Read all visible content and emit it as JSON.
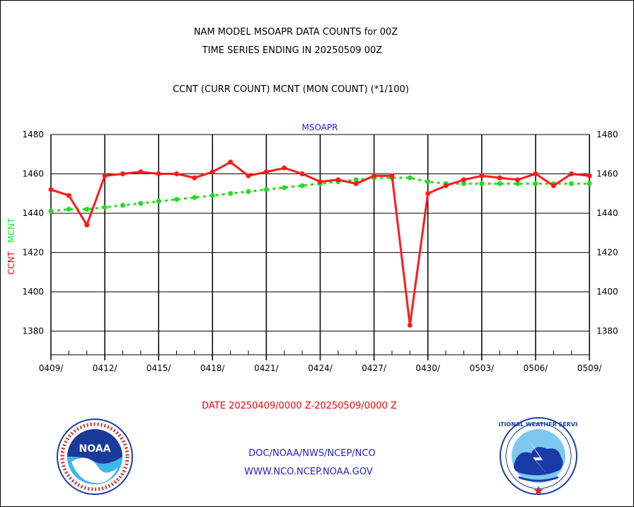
{
  "header": {
    "line1": "NAM MODEL MSOAPR DATA COUNTS for 00Z",
    "line2": "TIME SERIES ENDING IN 20250509 00Z",
    "line3": "CCNT (CURR COUNT) MCNT (MON COUNT) (*1/100)"
  },
  "footer": {
    "date_range": "DATE 20250409/0000 Z-20250509/0000 Z",
    "org": "DOC/NOAA/NWS/NCEP/NCO",
    "url": "WWW.NCO.NCEP.NOAA.GOV"
  },
  "logos": {
    "left": {
      "text": "NOAA"
    },
    "right": {
      "text": "NATIONAL WEATHER SERVICE"
    }
  },
  "colors": {
    "ccnt": "#ff1a1a",
    "mcnt": "#22dd22",
    "text_blue": "#1f1fd0"
  },
  "chart_data": {
    "type": "line",
    "title": "MSOAPR",
    "ylabel_ccnt": "CCNT",
    "ylabel_mcnt": "MCNT",
    "ylim": [
      1368,
      1480
    ],
    "yticks": [
      "1380",
      "1400",
      "1420",
      "1440",
      "1460",
      "1480"
    ],
    "xlim": [
      0,
      30
    ],
    "xticks": [
      {
        "day": 0,
        "label": "0409/"
      },
      {
        "day": 3,
        "label": "0412/"
      },
      {
        "day": 6,
        "label": "0415/"
      },
      {
        "day": 9,
        "label": "0418/"
      },
      {
        "day": 12,
        "label": "0421/"
      },
      {
        "day": 15,
        "label": "0424/"
      },
      {
        "day": 18,
        "label": "0427/"
      },
      {
        "day": 21,
        "label": "0430/"
      },
      {
        "day": 24,
        "label": "0503/"
      },
      {
        "day": 27,
        "label": "0506/"
      },
      {
        "day": 30,
        "label": "0509/"
      }
    ],
    "grid": true,
    "series": [
      {
        "name": "CCNT",
        "color": "#ff1a1a",
        "x": [
          0,
          1,
          2,
          3,
          4,
          5,
          6,
          7,
          8,
          9,
          10,
          11,
          12,
          13,
          14,
          15,
          16,
          17,
          18,
          19,
          20,
          21,
          22,
          23,
          24,
          25,
          26,
          27,
          28,
          29,
          30
        ],
        "values": [
          1452,
          1449,
          1434,
          1459,
          1460,
          1461,
          1460,
          1460,
          1458,
          1461,
          1466,
          1459,
          1461,
          1463,
          1460,
          1456,
          1457,
          1455,
          1459,
          1459,
          1383,
          1450,
          1454,
          1457,
          1459,
          1458,
          1457,
          1460,
          1454,
          1460,
          1459
        ]
      },
      {
        "name": "MCNT",
        "color": "#22dd22",
        "x": [
          0,
          1,
          2,
          3,
          4,
          5,
          6,
          7,
          8,
          9,
          10,
          11,
          12,
          13,
          14,
          15,
          16,
          17,
          18,
          19,
          20,
          21,
          22,
          23,
          24,
          25,
          26,
          27,
          28,
          29,
          30
        ],
        "values": [
          1441,
          1442,
          1442,
          1443,
          1444,
          1445,
          1446,
          1447,
          1448,
          1449,
          1450,
          1451,
          1452,
          1453,
          1454,
          1455,
          1456,
          1457,
          1458,
          1458,
          1458,
          1456,
          1455,
          1455,
          1455,
          1455,
          1455,
          1455,
          1455,
          1455,
          1455
        ]
      }
    ]
  }
}
